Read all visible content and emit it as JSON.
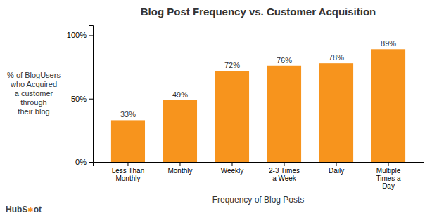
{
  "chart_data": {
    "type": "bar",
    "title": "Blog Post Frequency vs. Customer Acquisition",
    "xlabel": "Frequency of Blog Posts",
    "ylabel": "% of BlogUsers\nwho Acquired\na customer\nthrough\ntheir blog",
    "categories": [
      "Less Than\nMonthly",
      "Monthly",
      "Weekly",
      "2-3 Times\na Week",
      "Daily",
      "Multiple\nTimes a\nDay"
    ],
    "values": [
      33,
      49,
      72,
      76,
      78,
      89
    ],
    "value_labels": [
      "33%",
      "49%",
      "72%",
      "76%",
      "78%",
      "89%"
    ],
    "data_labels": true,
    "color": "#F7941D",
    "ylim": [
      0,
      108
    ],
    "yticks": [
      {
        "value": 0,
        "label": "0%"
      },
      {
        "value": 50,
        "label": "50%"
      },
      {
        "value": 100,
        "label": "100%"
      }
    ],
    "grid": false,
    "annotations": [
      "Hub",
      "S",
      "✱",
      "ot"
    ]
  }
}
